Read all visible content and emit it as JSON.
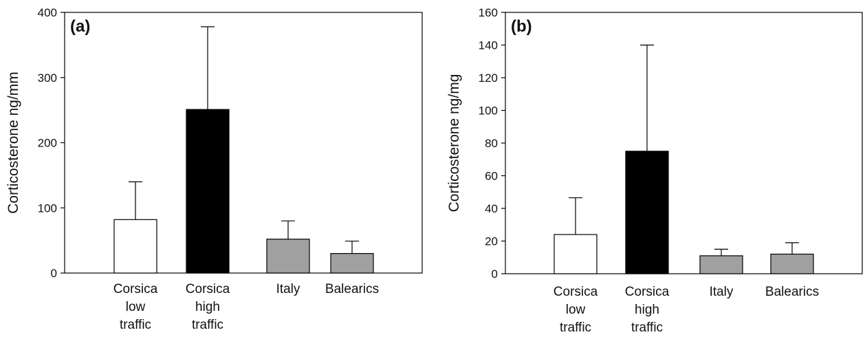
{
  "chart_data": [
    {
      "type": "bar",
      "panel_label": "(a)",
      "ylabel": "Corticosterone ng/mm",
      "ylim": [
        0,
        400
      ],
      "yticks": [
        0,
        100,
        200,
        300,
        400
      ],
      "categories": [
        [
          "Corsica",
          "low",
          "traffic"
        ],
        [
          "Corsica",
          "high",
          "traffic"
        ],
        [
          "Italy"
        ],
        [
          "Balearics"
        ]
      ],
      "values": [
        82,
        251,
        52,
        30
      ],
      "error_upper": [
        140,
        378,
        80,
        49
      ],
      "bar_colors": [
        "#ffffff",
        "#000000",
        "#a0a0a0",
        "#a0a0a0"
      ],
      "grid": false
    },
    {
      "type": "bar",
      "panel_label": "(b)",
      "ylabel": "Corticosterone ng/mg",
      "ylim": [
        0,
        160
      ],
      "yticks": [
        0,
        20,
        40,
        60,
        80,
        100,
        120,
        140,
        160
      ],
      "categories": [
        [
          "Corsica",
          "low",
          "traffic"
        ],
        [
          "Corsica",
          "high",
          "traffic"
        ],
        [
          "Italy"
        ],
        [
          "Balearics"
        ]
      ],
      "values": [
        24,
        75,
        11,
        12
      ],
      "error_upper": [
        46.5,
        140,
        15,
        19
      ],
      "bar_colors": [
        "#ffffff",
        "#000000",
        "#a0a0a0",
        "#a0a0a0"
      ],
      "grid": false
    }
  ]
}
